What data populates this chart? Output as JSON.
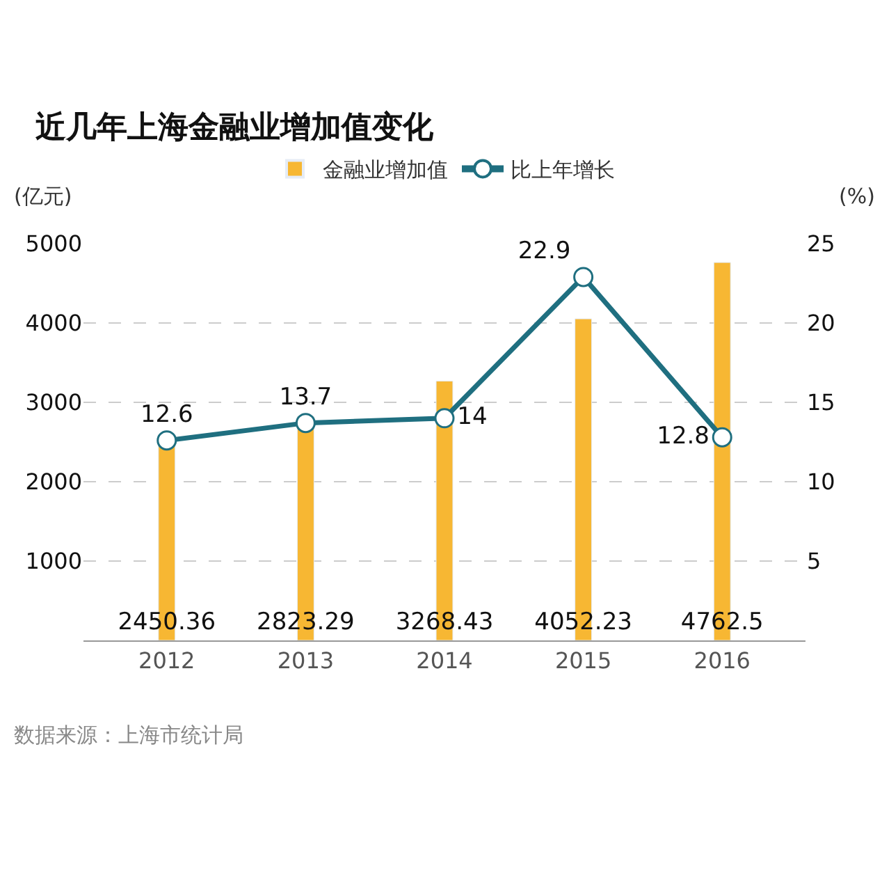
{
  "chart_data": {
    "type": "bar",
    "title": "近几年上海金融业增加值变化",
    "ylabel": "(亿元)",
    "y2label": "(%)",
    "categories": [
      "2012",
      "2013",
      "2014",
      "2015",
      "2016"
    ],
    "series": [
      {
        "name": "金融业增加值",
        "color": "#f7b733",
        "values": [
          2450.36,
          2823.29,
          3268.43,
          4052.23,
          4762.5
        ]
      },
      {
        "name": "比上年增长",
        "type": "line",
        "axis": "y2",
        "color": "#1f6f80",
        "marker": "circle",
        "values": [
          12.6,
          13.7,
          14,
          22.9,
          12.8
        ]
      }
    ],
    "ylim": [
      0,
      5000
    ],
    "yticks": [
      1000,
      2000,
      3000,
      4000,
      5000
    ],
    "y2lim": [
      0,
      25
    ],
    "y2ticks": [
      5,
      10,
      15,
      20,
      25
    ],
    "grid": "y",
    "legend": "top",
    "data_labels": true,
    "annotations": [
      "数据来源：上海市统计局"
    ]
  }
}
